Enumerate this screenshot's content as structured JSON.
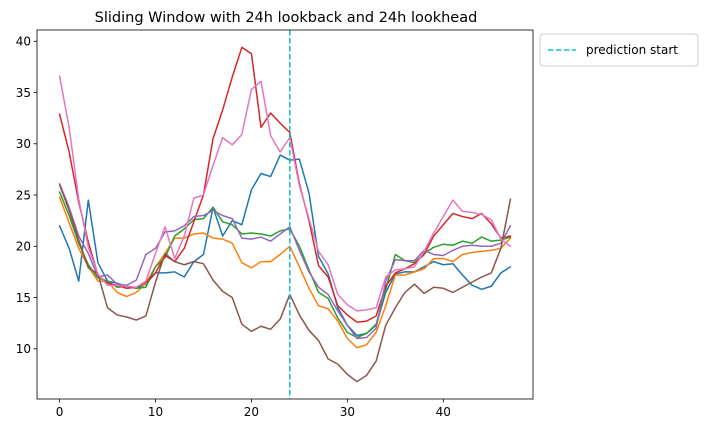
{
  "chart_data": {
    "type": "line",
    "title": "Sliding Window with 24h lookback and 24h lookhead",
    "xlabel": "",
    "ylabel": "",
    "xlim": [
      -2.35,
      49.35
    ],
    "ylim": [
      5.1,
      41.1
    ],
    "xticks": [
      0,
      10,
      20,
      30,
      40
    ],
    "yticks": [
      10,
      15,
      20,
      25,
      30,
      35,
      40
    ],
    "grid": false,
    "legend": {
      "placement": "outside-top-right",
      "entries": [
        "prediction start"
      ]
    },
    "vline": {
      "x": 24,
      "label": "prediction start",
      "color": "#17becf",
      "style": "dashed"
    },
    "x": [
      0,
      1,
      2,
      3,
      4,
      5,
      6,
      7,
      8,
      9,
      10,
      11,
      12,
      13,
      14,
      15,
      16,
      17,
      18,
      19,
      20,
      21,
      22,
      23,
      24,
      25,
      26,
      27,
      28,
      29,
      30,
      31,
      32,
      33,
      34,
      35,
      36,
      37,
      38,
      39,
      40,
      41,
      42,
      43,
      44,
      45,
      46,
      47
    ],
    "series": [
      {
        "color": "#1f77b4",
        "values": [
          22.0,
          19.8,
          16.6,
          24.5,
          18.4,
          16.6,
          16.4,
          16.1,
          15.9,
          16.3,
          17.4,
          17.4,
          17.5,
          17.0,
          18.5,
          19.2,
          23.8,
          21.0,
          22.5,
          22.1,
          25.5,
          27.1,
          26.8,
          28.9,
          28.4,
          28.5,
          25.2,
          19.0,
          17.3,
          14.0,
          12.3,
          11.3,
          11.5,
          12.3,
          15.5,
          17.3,
          17.5,
          17.5,
          18.0,
          18.5,
          18.2,
          18.3,
          17.2,
          16.2,
          15.8,
          16.1,
          17.4,
          18.0
        ]
      },
      {
        "color": "#ff7f0e",
        "values": [
          24.8,
          22.3,
          19.8,
          18.0,
          16.6,
          16.6,
          15.5,
          15.1,
          15.5,
          16.4,
          18.0,
          19.3,
          20.8,
          20.8,
          21.2,
          21.3,
          20.8,
          20.7,
          20.3,
          18.4,
          17.9,
          18.5,
          18.5,
          19.2,
          20.0,
          18.0,
          15.9,
          14.2,
          13.9,
          12.7,
          11.0,
          10.1,
          10.4,
          11.6,
          14.2,
          17.2,
          17.2,
          17.5,
          17.8,
          18.8,
          18.8,
          18.5,
          19.2,
          19.4,
          19.5,
          19.6,
          19.8,
          20.8
        ]
      },
      {
        "color": "#2ca02c",
        "values": [
          25.3,
          23.0,
          20.3,
          18.2,
          16.9,
          16.6,
          16.0,
          16.1,
          15.9,
          16.0,
          18.0,
          18.9,
          21.0,
          21.7,
          22.6,
          22.7,
          23.8,
          22.4,
          22.1,
          21.2,
          21.3,
          21.2,
          21.0,
          21.5,
          21.7,
          20.0,
          17.7,
          15.5,
          14.9,
          13.0,
          11.6,
          11.1,
          11.5,
          12.4,
          15.8,
          19.2,
          18.6,
          18.4,
          19.3,
          19.9,
          20.2,
          20.1,
          20.5,
          20.3,
          20.9,
          20.5,
          20.6,
          20.9
        ]
      },
      {
        "color": "#d62728",
        "values": [
          32.9,
          29.2,
          24.3,
          20.4,
          17.2,
          16.4,
          16.2,
          15.9,
          16.0,
          16.5,
          17.4,
          19.1,
          18.5,
          19.8,
          22.4,
          25.0,
          30.5,
          33.3,
          36.5,
          39.4,
          38.8,
          31.6,
          33.0,
          32.0,
          31.1,
          26.1,
          22.5,
          18.1,
          17.0,
          14.2,
          13.3,
          12.6,
          12.7,
          13.2,
          16.1,
          17.4,
          17.8,
          18.3,
          19.2,
          21.0,
          22.1,
          23.2,
          22.9,
          22.7,
          23.2,
          22.2,
          20.8,
          21.0
        ]
      },
      {
        "color": "#9467bd",
        "values": [
          26.1,
          23.8,
          21.0,
          19.3,
          17.0,
          17.2,
          16.3,
          16.2,
          16.7,
          19.2,
          19.8,
          21.4,
          21.5,
          22.0,
          22.9,
          23.0,
          23.5,
          23.0,
          22.7,
          20.8,
          20.7,
          20.9,
          20.5,
          21.2,
          21.9,
          19.6,
          17.5,
          16.0,
          15.3,
          13.7,
          12.3,
          11.0,
          11.1,
          12.0,
          16.6,
          18.7,
          18.6,
          18.6,
          19.6,
          19.2,
          19.1,
          19.6,
          20.0,
          20.1,
          20.0,
          20.0,
          20.3,
          22.0
        ]
      },
      {
        "color": "#8c564b",
        "values": [
          26.0,
          23.5,
          20.6,
          17.9,
          17.3,
          14.0,
          13.3,
          13.1,
          12.8,
          13.2,
          16.5,
          19.3,
          18.5,
          18.2,
          18.5,
          18.3,
          16.7,
          15.6,
          15.0,
          12.4,
          11.7,
          12.2,
          11.9,
          12.9,
          15.3,
          13.3,
          11.8,
          10.8,
          9.0,
          8.5,
          7.5,
          6.8,
          7.4,
          8.8,
          12.3,
          14.0,
          15.5,
          16.3,
          15.4,
          16.0,
          15.9,
          15.5,
          16.0,
          16.5,
          17.0,
          17.4,
          19.8,
          24.6
        ]
      },
      {
        "color": "#e377c2",
        "values": [
          36.6,
          31.6,
          24.6,
          19.9,
          17.3,
          16.2,
          16.2,
          16.1,
          16.0,
          16.6,
          19.3,
          21.9,
          18.8,
          21.0,
          24.7,
          25.0,
          27.9,
          30.6,
          29.9,
          30.9,
          35.3,
          36.1,
          30.8,
          29.2,
          30.6,
          25.9,
          22.7,
          19.5,
          18.2,
          15.3,
          14.3,
          13.7,
          13.8,
          14.0,
          17.0,
          17.7,
          17.8,
          18.0,
          19.5,
          21.3,
          22.9,
          24.5,
          23.4,
          23.3,
          23.1,
          22.6,
          20.7,
          20.0
        ]
      }
    ]
  }
}
